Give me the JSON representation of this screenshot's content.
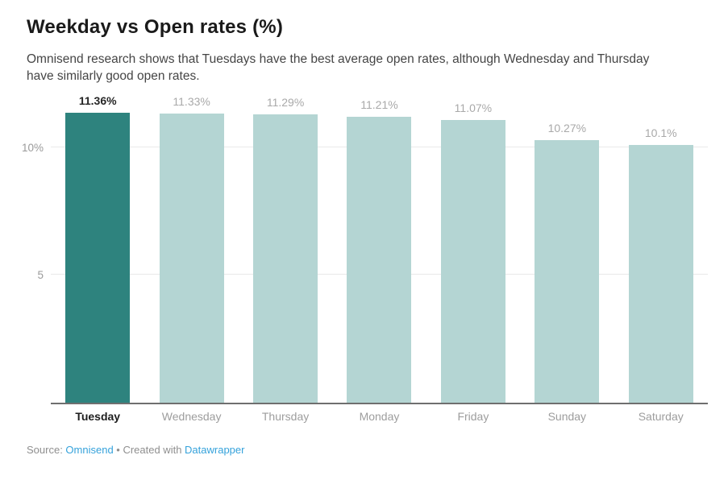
{
  "header": {
    "title": "Weekday vs Open rates (%)",
    "subtitle": "Omnisend research shows that Tuesdays have the best average open rates, although Wednesday and Thursday have similarly good open rates."
  },
  "chart_data": {
    "type": "bar",
    "title": "Weekday vs Open rates (%)",
    "categories": [
      "Tuesday",
      "Wednesday",
      "Thursday",
      "Monday",
      "Friday",
      "Sunday",
      "Saturday"
    ],
    "values": [
      11.36,
      11.33,
      11.29,
      11.21,
      11.07,
      10.27,
      10.1
    ],
    "value_labels": [
      "11.36%",
      "11.33%",
      "11.29%",
      "11.21%",
      "11.07%",
      "10.27%",
      "10.1%"
    ],
    "highlighted_category": "Tuesday",
    "xlabel": "",
    "ylabel": "",
    "ylim": [
      0,
      12.3
    ],
    "yticks": [
      {
        "value": 5,
        "label": "5"
      },
      {
        "value": 10,
        "label": "10%"
      }
    ],
    "grid": true,
    "legend": false,
    "colors": {
      "highlight": "#2e837e",
      "default": "#b4d5d3",
      "gridline": "#e9e9e9",
      "baseline": "#6f6f6f"
    }
  },
  "footer": {
    "source_prefix": "Source: ",
    "source_link": "Omnisend",
    "middle": " • Created with ",
    "tool_link": "Datawrapper",
    "link_color": "#35a2db"
  }
}
